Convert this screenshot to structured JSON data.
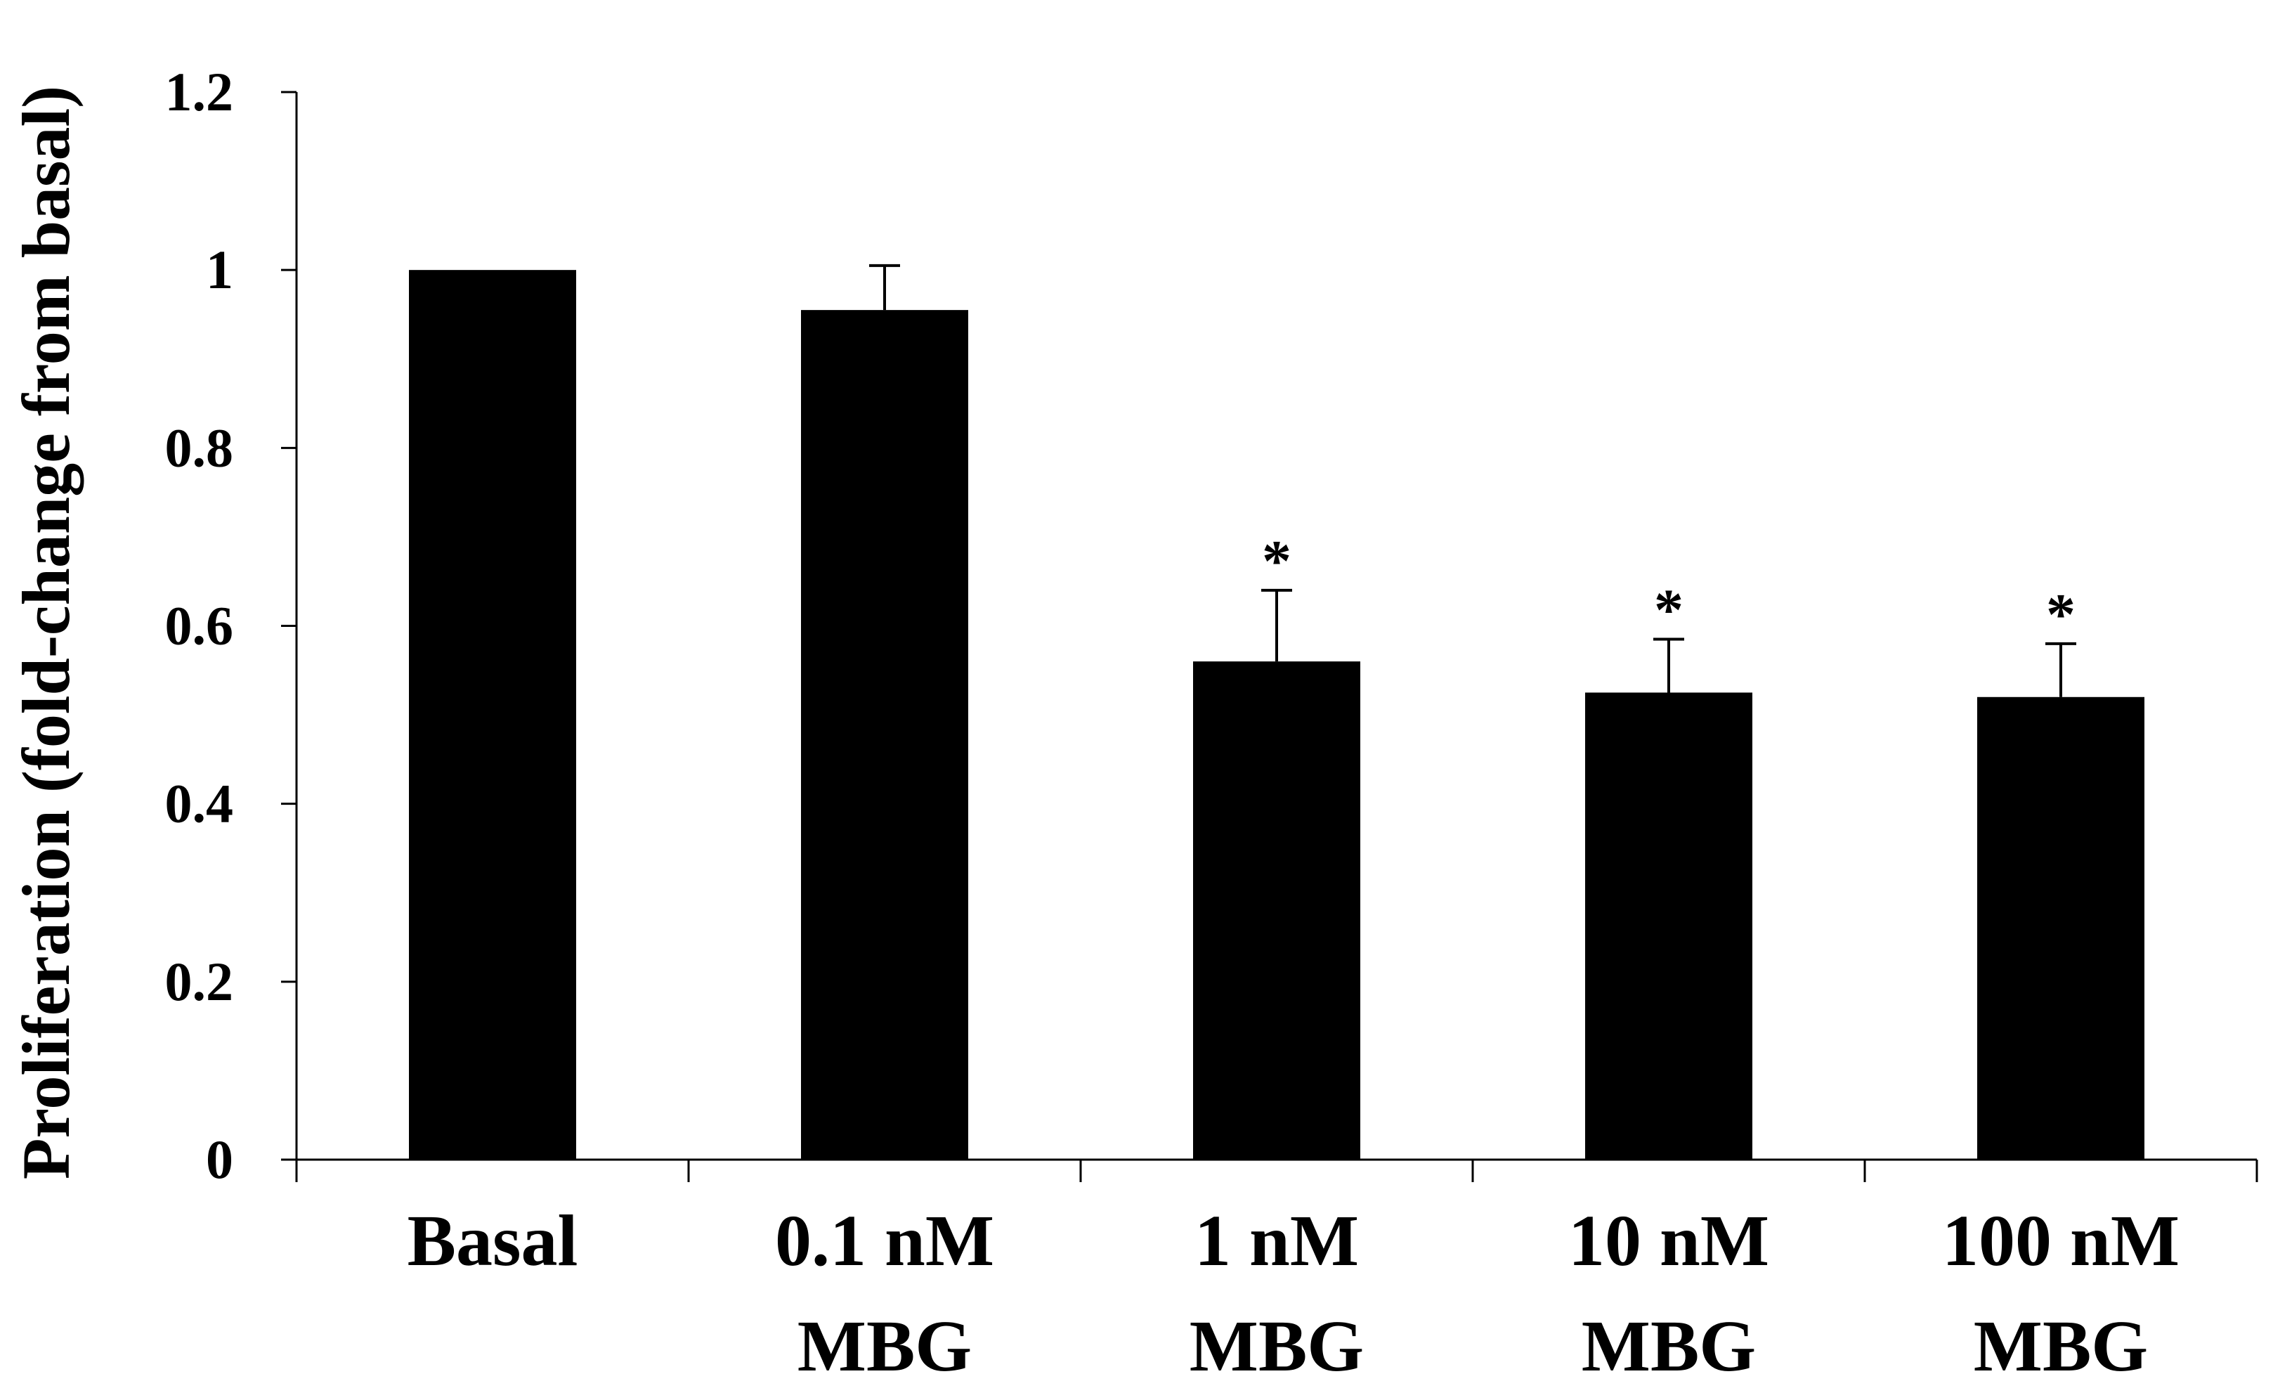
{
  "chart_data": {
    "type": "bar",
    "title": "",
    "xlabel": "",
    "ylabel": "Proliferation (fold-change from basal)",
    "ylim": [
      0,
      1.2
    ],
    "yticks": [
      "0",
      "0.2",
      "0.4",
      "0.6",
      "0.8",
      "1",
      "1.2"
    ],
    "ytick_values": [
      0,
      0.2,
      0.4,
      0.6,
      0.8,
      1.0,
      1.2
    ],
    "categories": [
      [
        "Basal"
      ],
      [
        "0.1 nM",
        "MBG"
      ],
      [
        "1 nM",
        "MBG"
      ],
      [
        "10 nM",
        "MBG"
      ],
      [
        "100 nM",
        "MBG"
      ]
    ],
    "values": [
      1.0,
      0.955,
      0.56,
      0.525,
      0.52
    ],
    "error_upper": [
      0.0,
      0.05,
      0.08,
      0.06,
      0.06
    ],
    "significance": [
      "",
      "",
      "*",
      "*",
      "*"
    ],
    "bar_color": "#000000",
    "grid": false
  }
}
